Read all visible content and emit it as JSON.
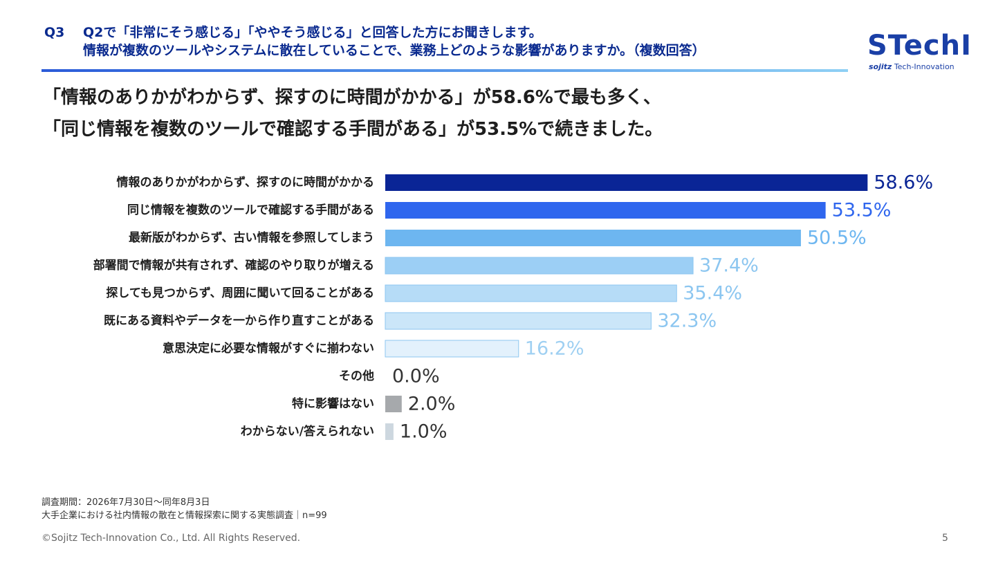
{
  "header": {
    "question_number": "Q3",
    "question_line1": "Q2で「非常にそう感じる」「ややそう感じる」と回答した方にお聞きします。",
    "question_line2": "情報が複数のツールやシステムに散在していることで、業務上どのような影響がありますか。（複数回答）"
  },
  "logo": {
    "wordmark": "STechI",
    "tagline_brand": "sojitz",
    "tagline_rest": "Tech-Innovation"
  },
  "headline": {
    "line1": "「情報のありかがわからず、探すのに時間がかかる」が58.6%で最も多く、",
    "line2": "「同じ情報を複数のツールで確認する手間がある」が53.5%で続きました。"
  },
  "chart_data": {
    "type": "bar",
    "orientation": "horizontal",
    "categories": [
      "情報のありかがわからず、探すのに時間がかかる",
      "同じ情報を複数のツールで確認する手間がある",
      "最新版がわからず、古い情報を参照してしまう",
      "部署間で情報が共有されず、確認のやり取りが増える",
      "探しても見つからず、周囲に聞いて回ることがある",
      "既にある資料やデータを一から作り直すことがある",
      "意思決定に必要な情報がすぐに揃わない",
      "その他",
      "特に影響はない",
      "わからない/答えられない"
    ],
    "values": [
      58.6,
      53.5,
      50.5,
      37.4,
      35.4,
      32.3,
      16.2,
      0.0,
      2.0,
      1.0
    ],
    "value_labels": [
      "58.6%",
      "53.5%",
      "50.5%",
      "37.4%",
      "35.4%",
      "32.3%",
      "16.2%",
      "0.0%",
      "2.0%",
      "1.0%"
    ],
    "bar_colors": [
      "#0a2596",
      "#2f66ee",
      "#6db6f0",
      "#9ccff5",
      "#b6dcf7",
      "#cbe6f9",
      "#e3f1fc",
      "#cccccc",
      "#a6a9ac",
      "#cdd7df"
    ],
    "label_colors": [
      "#0a2596",
      "#2f66ee",
      "#6db6f0",
      "#8cc6f0",
      "#8cc6f0",
      "#8cc6f0",
      "#9fd0f2",
      "#333333",
      "#333333",
      "#333333"
    ],
    "xlim": [
      0,
      100
    ]
  },
  "footer": {
    "survey_period": "調査期間：2026年7月30日～同年8月3日",
    "survey_name": "大手企業における社内情報の散在と情報探索に関する実態調査｜n=99",
    "copyright": "©Sojitz Tech-Innovation Co., Ltd. All Rights Reserved.",
    "page_number": "5"
  }
}
